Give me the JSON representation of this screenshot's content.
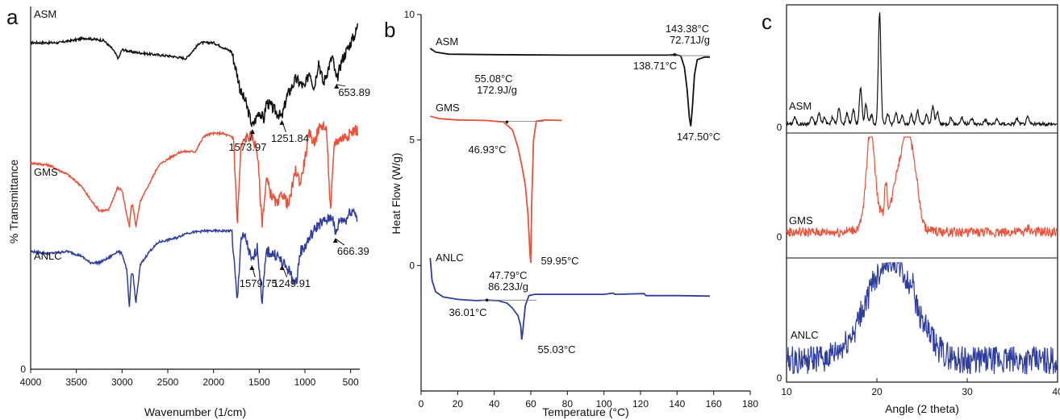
{
  "colors": {
    "ASM": "#111111",
    "GMS": "#e8523b",
    "ANLC": "#2f3e9e"
  },
  "chart_data": [
    {
      "panel": "a",
      "type": "line",
      "xlabel": "Wavenumber (1/cm)",
      "ylabel": "% Transmittance",
      "xlim": [
        4000,
        400
      ],
      "xticks": [
        4000,
        3500,
        3000,
        2500,
        2000,
        1500,
        1000,
        500
      ],
      "yticks": [
        0
      ],
      "series": [
        {
          "name": "ASM",
          "points": [
            [
              4000,
              7.2
            ],
            [
              3700,
              7.2
            ],
            [
              3400,
              7.3
            ],
            [
              3200,
              7.25
            ],
            [
              3100,
              7.05
            ],
            [
              3040,
              6.85
            ],
            [
              3000,
              7.05
            ],
            [
              2900,
              7.0
            ],
            [
              2700,
              6.95
            ],
            [
              2450,
              6.9
            ],
            [
              2300,
              6.85
            ],
            [
              2150,
              7.2
            ],
            [
              2000,
              7.2
            ],
            [
              1800,
              7.0
            ],
            [
              1730,
              6.4
            ],
            [
              1700,
              6.1
            ],
            [
              1650,
              5.9
            ],
            [
              1573.97,
              5.35
            ],
            [
              1500,
              5.7
            ],
            [
              1450,
              5.5
            ],
            [
              1420,
              5.9
            ],
            [
              1350,
              5.75
            ],
            [
              1251.84,
              5.55
            ],
            [
              1200,
              6.0
            ],
            [
              1100,
              6.4
            ],
            [
              1000,
              6.2
            ],
            [
              950,
              6.6
            ],
            [
              900,
              6.2
            ],
            [
              850,
              6.8
            ],
            [
              800,
              6.3
            ],
            [
              700,
              6.9
            ],
            [
              653.89,
              6.35
            ],
            [
              600,
              6.8
            ],
            [
              500,
              7.2
            ],
            [
              450,
              7.4
            ],
            [
              420,
              7.6
            ]
          ]
        },
        {
          "name": "GMS",
          "points": [
            [
              4000,
              4.55
            ],
            [
              3800,
              4.5
            ],
            [
              3600,
              4.3
            ],
            [
              3450,
              4.05
            ],
            [
              3350,
              3.75
            ],
            [
              3250,
              3.5
            ],
            [
              3150,
              3.5
            ],
            [
              3050,
              4.0
            ],
            [
              3000,
              3.95
            ],
            [
              2950,
              3.4
            ],
            [
              2920,
              3.15
            ],
            [
              2900,
              3.6
            ],
            [
              2880,
              3.6
            ],
            [
              2850,
              3.15
            ],
            [
              2800,
              3.7
            ],
            [
              2700,
              4.1
            ],
            [
              2600,
              4.5
            ],
            [
              2450,
              4.7
            ],
            [
              2350,
              4.8
            ],
            [
              2200,
              4.8
            ],
            [
              2100,
              5.15
            ],
            [
              2000,
              5.2
            ],
            [
              1900,
              5.2
            ],
            [
              1780,
              5.1
            ],
            [
              1740,
              3.2
            ],
            [
              1700,
              4.9
            ],
            [
              1650,
              5.1
            ],
            [
              1580,
              5.15
            ],
            [
              1520,
              4.8
            ],
            [
              1470,
              3.2
            ],
            [
              1420,
              4.2
            ],
            [
              1380,
              3.9
            ],
            [
              1300,
              3.6
            ],
            [
              1250,
              3.9
            ],
            [
              1180,
              3.6
            ],
            [
              1100,
              4.4
            ],
            [
              1050,
              4.1
            ],
            [
              950,
              5.2
            ],
            [
              900,
              5.0
            ],
            [
              850,
              5.3
            ],
            [
              800,
              5.4
            ],
            [
              760,
              5.2
            ],
            [
              720,
              3.4
            ],
            [
              680,
              5.0
            ],
            [
              600,
              5.1
            ],
            [
              500,
              5.2
            ],
            [
              450,
              5.3
            ],
            [
              420,
              5.25
            ]
          ]
        },
        {
          "name": "ANLC",
          "points": [
            [
              4000,
              2.6
            ],
            [
              3800,
              2.55
            ],
            [
              3600,
              2.6
            ],
            [
              3450,
              2.5
            ],
            [
              3350,
              2.35
            ],
            [
              3250,
              2.35
            ],
            [
              3150,
              2.45
            ],
            [
              3050,
              2.6
            ],
            [
              3000,
              2.55
            ],
            [
              2950,
              2.2
            ],
            [
              2920,
              1.35
            ],
            [
              2900,
              2.1
            ],
            [
              2880,
              2.1
            ],
            [
              2850,
              1.45
            ],
            [
              2800,
              2.3
            ],
            [
              2700,
              2.6
            ],
            [
              2600,
              2.8
            ],
            [
              2400,
              2.9
            ],
            [
              2300,
              3.0
            ],
            [
              2100,
              3.05
            ],
            [
              2000,
              3.05
            ],
            [
              1800,
              3.05
            ],
            [
              1740,
              1.45
            ],
            [
              1700,
              2.9
            ],
            [
              1650,
              2.9
            ],
            [
              1579.75,
              2.35
            ],
            [
              1520,
              2.7
            ],
            [
              1470,
              1.5
            ],
            [
              1420,
              2.6
            ],
            [
              1300,
              2.5
            ],
            [
              1249.91,
              2.35
            ],
            [
              1180,
              2.2
            ],
            [
              1100,
              1.85
            ],
            [
              1050,
              2.6
            ],
            [
              1000,
              2.7
            ],
            [
              950,
              2.9
            ],
            [
              850,
              3.2
            ],
            [
              750,
              3.3
            ],
            [
              700,
              3.4
            ],
            [
              666.39,
              2.95
            ],
            [
              620,
              3.3
            ],
            [
              550,
              3.3
            ],
            [
              500,
              3.5
            ],
            [
              450,
              3.5
            ],
            [
              430,
              3.3
            ]
          ]
        }
      ],
      "annotations": [
        {
          "text": "1573.97",
          "series": "ASM",
          "x": 1573.97
        },
        {
          "text": "1251.84",
          "series": "ASM",
          "x": 1251.84
        },
        {
          "text": "653.89",
          "series": "ASM",
          "x": 653.89
        },
        {
          "text": "1579.75",
          "series": "ANLC",
          "x": 1579.75
        },
        {
          "text": "1249.91",
          "series": "ANLC",
          "x": 1249.91
        },
        {
          "text": "666.39",
          "series": "ANLC",
          "x": 666.39
        }
      ]
    },
    {
      "panel": "b",
      "type": "line",
      "xlabel": "Temperature (°C)",
      "ylabel": "Heat Flow (W/g)",
      "xlim": [
        0,
        180
      ],
      "ylim": [
        -5,
        10
      ],
      "xticks": [
        0,
        20,
        40,
        60,
        80,
        100,
        120,
        140,
        160,
        180
      ],
      "yticks": [
        0,
        5,
        10
      ],
      "series": [
        {
          "name": "ASM",
          "points": [
            [
              5,
              8.65
            ],
            [
              8,
              8.5
            ],
            [
              15,
              8.42
            ],
            [
              40,
              8.4
            ],
            [
              80,
              8.38
            ],
            [
              120,
              8.38
            ],
            [
              135,
              8.38
            ],
            [
              139,
              8.4
            ],
            [
              142,
              8.35
            ],
            [
              144,
              7.9
            ],
            [
              145.5,
              7.0
            ],
            [
              146.7,
              5.9
            ],
            [
              147.5,
              5.55
            ],
            [
              148.3,
              6.2
            ],
            [
              149.5,
              7.6
            ],
            [
              151,
              8.2
            ],
            [
              155,
              8.3
            ],
            [
              158,
              8.3
            ]
          ]
        },
        {
          "name": "GMS",
          "points": [
            [
              5,
              5.95
            ],
            [
              10,
              5.85
            ],
            [
              20,
              5.8
            ],
            [
              35,
              5.78
            ],
            [
              45,
              5.72
            ],
            [
              50,
              5.4
            ],
            [
              53,
              4.7
            ],
            [
              55,
              4.0
            ],
            [
              57,
              3.2
            ],
            [
              58.5,
              2.0
            ],
            [
              59.5,
              0.5
            ],
            [
              59.95,
              0.1
            ],
            [
              60.5,
              2.5
            ],
            [
              61.5,
              5.0
            ],
            [
              63,
              5.75
            ],
            [
              68,
              5.8
            ],
            [
              77,
              5.78
            ]
          ]
        },
        {
          "name": "ANLC",
          "points": [
            [
              5,
              0.3
            ],
            [
              6,
              -0.6
            ],
            [
              8,
              -1.05
            ],
            [
              12,
              -1.25
            ],
            [
              20,
              -1.35
            ],
            [
              30,
              -1.4
            ],
            [
              36,
              -1.38
            ],
            [
              42,
              -1.4
            ],
            [
              47,
              -1.5
            ],
            [
              50,
              -1.7
            ],
            [
              53,
              -2.0
            ],
            [
              54.5,
              -2.4
            ],
            [
              55.03,
              -2.95
            ],
            [
              55.5,
              -2.7
            ],
            [
              57,
              -1.6
            ],
            [
              59,
              -1.2
            ],
            [
              62,
              -1.15
            ],
            [
              80,
              -1.15
            ],
            [
              100,
              -1.15
            ],
            [
              105,
              -1.1
            ],
            [
              106,
              -1.15
            ],
            [
              122,
              -1.12
            ],
            [
              123,
              -1.2
            ],
            [
              140,
              -1.2
            ],
            [
              158,
              -1.22
            ]
          ]
        }
      ],
      "annotations": [
        {
          "text": "143.38°C",
          "series": "ASM"
        },
        {
          "text": "72.71J/g",
          "series": "ASM"
        },
        {
          "text": "138.71°C",
          "series": "ASM",
          "x": 138.71
        },
        {
          "text": "147.50°C",
          "series": "ASM",
          "x": 147.5
        },
        {
          "text": "55.08°C",
          "series": "GMS"
        },
        {
          "text": "172.9J/g",
          "series": "GMS"
        },
        {
          "text": "46.93°C",
          "series": "GMS",
          "x": 46.93
        },
        {
          "text": "59.95°C",
          "series": "GMS",
          "x": 59.95
        },
        {
          "text": "47.79°C",
          "series": "ANLC"
        },
        {
          "text": "86.23J/g",
          "series": "ANLC"
        },
        {
          "text": "36.01°C",
          "series": "ANLC",
          "x": 36.01
        },
        {
          "text": "55.03°C",
          "series": "ANLC",
          "x": 55.03
        }
      ]
    },
    {
      "panel": "c",
      "type": "line",
      "xlabel": "Angle (2 theta)",
      "xlim": [
        10,
        40
      ],
      "xticks": [
        10,
        20,
        30,
        40
      ],
      "subpanels": [
        {
          "name": "ASM",
          "zero_label": "0",
          "peaks": [
            [
              10.9,
              0.06
            ],
            [
              12.8,
              0.07
            ],
            [
              13.6,
              0.1
            ],
            [
              14.2,
              0.06
            ],
            [
              15.1,
              0.06
            ],
            [
              15.8,
              0.14
            ],
            [
              16.7,
              0.1
            ],
            [
              17.4,
              0.13
            ],
            [
              18.2,
              0.32
            ],
            [
              18.8,
              0.18
            ],
            [
              19.4,
              0.08
            ],
            [
              20.3,
              1.0
            ],
            [
              21.2,
              0.1
            ],
            [
              22.1,
              0.1
            ],
            [
              22.8,
              0.08
            ],
            [
              23.8,
              0.08
            ],
            [
              24.5,
              0.12
            ],
            [
              25.5,
              0.08
            ],
            [
              26.2,
              0.16
            ],
            [
              26.7,
              0.1
            ],
            [
              28.2,
              0.06
            ],
            [
              29.4,
              0.06
            ],
            [
              30.5,
              0.05
            ],
            [
              32.0,
              0.04
            ],
            [
              33.3,
              0.04
            ],
            [
              35.5,
              0.05
            ],
            [
              36.7,
              0.06
            ]
          ]
        },
        {
          "name": "GMS",
          "zero_label": "0",
          "peaks": [
            [
              19.3,
              0.58
            ],
            [
              21.0,
              0.2
            ],
            [
              22.3,
              0.25
            ],
            [
              23.3,
              0.55
            ],
            [
              24.2,
              0.3
            ],
            [
              36.8,
              0.03
            ]
          ]
        },
        {
          "name": "ANLC",
          "zero_label": "0",
          "peaks": [
            [
              21.5,
              0.5
            ],
            [
              24.0,
              0.12
            ]
          ]
        }
      ]
    }
  ],
  "panels": {
    "a": "a",
    "b": "b",
    "c": "c"
  }
}
